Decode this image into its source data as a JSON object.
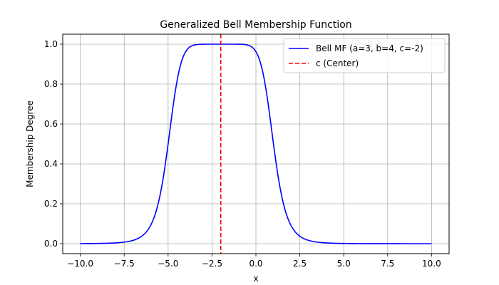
{
  "chart_data": {
    "type": "line",
    "title": "Generalized Bell Membership Function",
    "xlabel": "x",
    "ylabel": "Membership Degree",
    "xlim": [
      -11.0,
      11.0
    ],
    "ylim": [
      -0.05,
      1.05
    ],
    "xticks": [
      -10.0,
      -7.5,
      -5.0,
      -2.5,
      0.0,
      2.5,
      5.0,
      7.5,
      10.0
    ],
    "xtick_labels": [
      "−10.0",
      "−7.5",
      "−5.0",
      "−2.5",
      "0.0",
      "2.5",
      "5.0",
      "7.5",
      "10.0"
    ],
    "yticks": [
      0.0,
      0.2,
      0.4,
      0.6,
      0.8,
      1.0
    ],
    "ytick_labels": [
      "0.0",
      "0.2",
      "0.4",
      "0.6",
      "0.8",
      "1.0"
    ],
    "grid": true,
    "legend_position": "top-right",
    "series": [
      {
        "name": "Bell MF (a=3, b=4, c=-2)",
        "color": "#0000ff",
        "style": "solid",
        "function": "generalized_bell",
        "params": {
          "a": 3,
          "b": 4,
          "c": -2
        },
        "x_range": [
          -10,
          10
        ]
      },
      {
        "name": "c (Center)",
        "color": "#ff0000",
        "style": "dashed",
        "x": -2
      }
    ]
  }
}
